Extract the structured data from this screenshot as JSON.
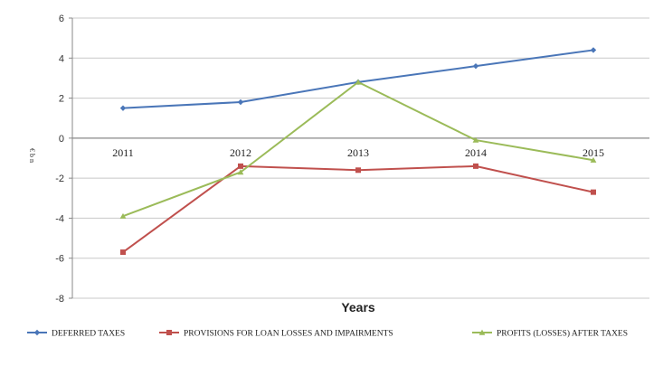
{
  "chart_data": {
    "type": "line",
    "title": "",
    "xlabel": "Years",
    "ylabel": "€ b n",
    "categories": [
      "2011",
      "2012",
      "2013",
      "2014",
      "2015"
    ],
    "ylim": [
      -8,
      6
    ],
    "yticks": [
      6,
      4,
      2,
      0,
      -2,
      -4,
      -6,
      -8
    ],
    "grid": true,
    "legend_position": "bottom",
    "series": [
      {
        "name": "DEFERRED TAXES",
        "color": "#4a76b8",
        "marker": "diamond",
        "values": [
          1.5,
          1.8,
          2.8,
          3.6,
          4.4
        ]
      },
      {
        "name": "PROVISIONS FOR LOAN LOSSES AND IMPAIRMENTS",
        "color": "#c0504d",
        "marker": "square",
        "values": [
          -5.7,
          -1.4,
          -1.6,
          -1.4,
          -2.7
        ]
      },
      {
        "name": "PROFITS (LOSSES) AFTER TAXES",
        "color": "#9bbb59",
        "marker": "triangle",
        "values": [
          -3.9,
          -1.7,
          2.8,
          -0.1,
          -1.1
        ]
      }
    ]
  }
}
